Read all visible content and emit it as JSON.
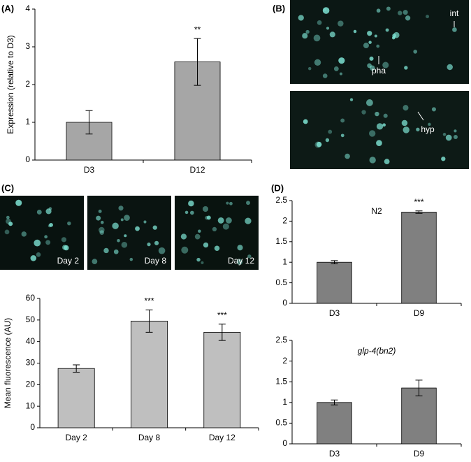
{
  "panel_labels": [
    "(A)",
    "(B)",
    "(C)",
    "(D)"
  ],
  "micrograph_labels": {
    "B": [
      "int",
      "pha",
      "hyp"
    ],
    "C": [
      "Day 2",
      "Day 8",
      "Day 12"
    ]
  },
  "chart_data": [
    {
      "type": "bar",
      "y_label": "Expression (relative to D3)",
      "categories": [
        "D3",
        "D12"
      ],
      "values": [
        1,
        2.6
      ],
      "errors": [
        0.31,
        0.62
      ],
      "significance": [
        null,
        "**"
      ],
      "color": "#a6a6a6",
      "ylim": [
        0,
        4
      ],
      "yticks": [
        0,
        1,
        2,
        3,
        4
      ]
    },
    {
      "type": "bar",
      "y_label": "Mean fluorescence (AU)",
      "categories": [
        "Day 2",
        "Day 8",
        "Day 12"
      ],
      "values": [
        27.5,
        49.5,
        44.3
      ],
      "errors": [
        1.7,
        5.2,
        3.8
      ],
      "significance": [
        null,
        "***",
        "***"
      ],
      "color": "#bfbfbf",
      "ylim": [
        0,
        60
      ],
      "yticks": [
        0,
        10,
        20,
        30,
        40,
        50,
        60
      ]
    },
    {
      "type": "bar",
      "title": "N2",
      "categories": [
        "D3",
        "D9"
      ],
      "values": [
        1,
        2.22
      ],
      "errors": [
        0.04,
        0.03
      ],
      "significance": [
        null,
        "***"
      ],
      "color": "#808080",
      "ylim": [
        0,
        2.5
      ],
      "yticks": [
        0,
        0.5,
        1,
        1.5,
        2,
        2.5
      ]
    },
    {
      "type": "bar",
      "title": "glp-4(bn2)",
      "categories": [
        "D3",
        "D9"
      ],
      "values": [
        1,
        1.35
      ],
      "errors": [
        0.06,
        0.19
      ],
      "color": "#808080",
      "ylim": [
        0,
        2.5
      ],
      "yticks": [
        0,
        0.5,
        1,
        1.5,
        2,
        2.5
      ]
    }
  ]
}
